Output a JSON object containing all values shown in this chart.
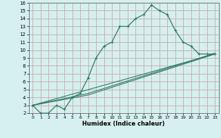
{
  "xlabel": "Humidex (Indice chaleur)",
  "bg_color": "#d6efef",
  "grid_color": "#c8a8a8",
  "line_color": "#2d7868",
  "xlim": [
    -0.5,
    23.5
  ],
  "ylim": [
    2,
    16
  ],
  "xticks": [
    0,
    1,
    2,
    3,
    4,
    5,
    6,
    7,
    8,
    9,
    10,
    11,
    12,
    13,
    14,
    15,
    16,
    17,
    18,
    19,
    20,
    21,
    22,
    23
  ],
  "yticks": [
    2,
    3,
    4,
    5,
    6,
    7,
    8,
    9,
    10,
    11,
    12,
    13,
    14,
    15,
    16
  ],
  "main_x": [
    0,
    1,
    2,
    3,
    4,
    5,
    6,
    7,
    8,
    9,
    10,
    11,
    12,
    13,
    14,
    15,
    16,
    17,
    18,
    19,
    20,
    21,
    22,
    23
  ],
  "main_y": [
    3,
    2,
    2,
    3,
    2.5,
    4,
    4.5,
    6.5,
    9,
    10.5,
    11,
    13,
    13,
    14,
    14.5,
    15.7,
    15,
    14.5,
    12.5,
    11,
    10.5,
    9.5,
    9.5,
    9.5
  ],
  "line2_x": [
    0,
    23
  ],
  "line2_y": [
    3.0,
    9.5
  ],
  "line3_x": [
    0,
    7,
    23
  ],
  "line3_y": [
    3.0,
    4.3,
    9.5
  ],
  "line4_x": [
    0,
    7,
    23
  ],
  "line4_y": [
    3.0,
    4.5,
    9.6
  ]
}
